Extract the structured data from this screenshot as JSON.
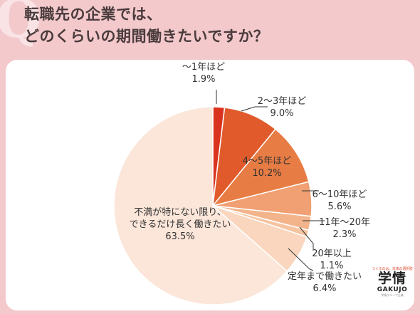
{
  "header": {
    "title_line1": "転職先の企業では、",
    "title_line2": "どのくらいの期間働きたいですか？"
  },
  "logo": {
    "tagline": "つくるのは、未来の選択肢",
    "kanji": "学情",
    "roman": "GAKUJO",
    "sub": "学情グループ企業"
  },
  "colors": {
    "background": "#f3c9cc",
    "card": "#ffffff",
    "title_text": "#4a3b3c",
    "label_text": "#333333"
  },
  "chart_data": {
    "type": "pie",
    "title": "",
    "start_angle_deg": 0,
    "direction": "clockwise",
    "slices": [
      {
        "label": "〜1年ほど",
        "value": 1.9,
        "display": "1.9%",
        "color": "#d9331f"
      },
      {
        "label": "2〜3年ほど",
        "value": 9.0,
        "display": "9.0%",
        "color": "#e05a2c"
      },
      {
        "label": "4〜5年ほど",
        "value": 10.2,
        "display": "10.2%",
        "color": "#e77c44"
      },
      {
        "label": "6〜10年ほど",
        "value": 5.6,
        "display": "5.6%",
        "color": "#f0a072"
      },
      {
        "label": "11年〜20年",
        "value": 2.3,
        "display": "2.3%",
        "color": "#f3b48b"
      },
      {
        "label": "20年以上",
        "value": 1.1,
        "display": "1.1%",
        "color": "#f6c4a1"
      },
      {
        "label": "定年まで働きたい",
        "value": 6.4,
        "display": "6.4%",
        "color": "#f9d6bd"
      },
      {
        "label": "不満が特にない限り、\nできるだけ長く働きたい",
        "value": 63.5,
        "display": "63.5%",
        "color": "#fbe6d9"
      }
    ]
  }
}
